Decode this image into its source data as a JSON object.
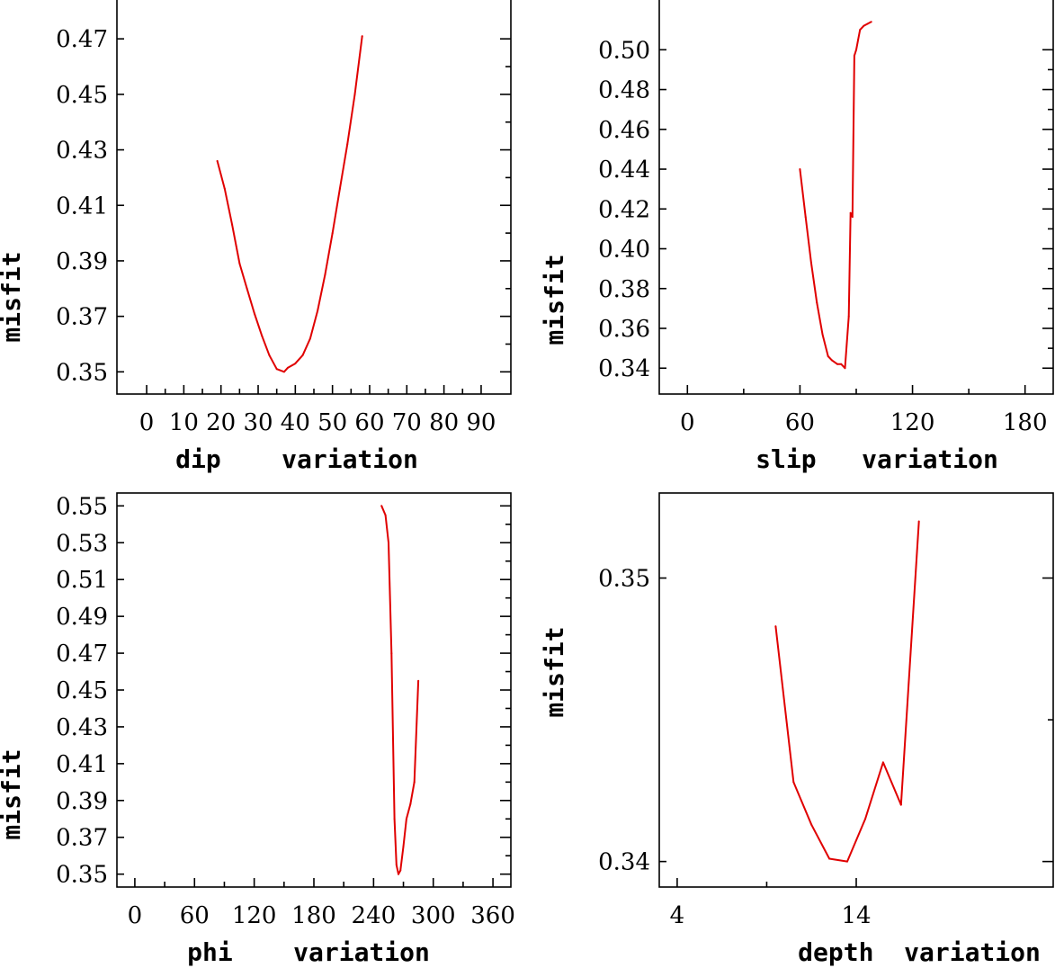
{
  "chart_data": [
    {
      "type": "line",
      "title": "",
      "xlabel": "dip    variation",
      "ylabel": "misfit",
      "xlim": [
        -8,
        98
      ],
      "ylim": [
        0.342,
        0.484
      ],
      "xticks": [
        "0",
        "10",
        "20",
        "30",
        "40",
        "50",
        "60",
        "70",
        "80",
        "90"
      ],
      "xtick_values": [
        0,
        10,
        20,
        30,
        40,
        50,
        60,
        70,
        80,
        90
      ],
      "yticks": [
        "0.35",
        "0.37",
        "0.39",
        "0.41",
        "0.43",
        "0.45",
        "0.47"
      ],
      "ytick_values": [
        0.35,
        0.37,
        0.39,
        0.41,
        0.43,
        0.45,
        0.47
      ],
      "series": [
        {
          "name": "misfit",
          "color": "#e00000",
          "x": [
            19,
            21,
            23,
            25,
            27,
            29,
            31,
            33,
            35,
            37,
            38,
            40,
            42,
            44,
            46,
            48,
            50,
            52,
            54,
            56,
            58
          ],
          "y": [
            0.426,
            0.416,
            0.403,
            0.389,
            0.38,
            0.371,
            0.363,
            0.356,
            0.351,
            0.35,
            0.3515,
            0.353,
            0.356,
            0.362,
            0.372,
            0.385,
            0.4,
            0.416,
            0.432,
            0.45,
            0.471
          ]
        }
      ]
    },
    {
      "type": "line",
      "title": "",
      "xlabel": "slip   variation",
      "ylabel": "misfit",
      "xlim": [
        -15,
        195
      ],
      "ylim": [
        0.327,
        0.525
      ],
      "xticks": [
        "0",
        "60",
        "120",
        "180"
      ],
      "xtick_values": [
        0,
        60,
        120,
        180
      ],
      "yticks": [
        "0.34",
        "0.36",
        "0.38",
        "0.40",
        "0.42",
        "0.44",
        "0.46",
        "0.48",
        "0.50"
      ],
      "ytick_values": [
        0.34,
        0.36,
        0.38,
        0.4,
        0.42,
        0.44,
        0.46,
        0.48,
        0.5
      ],
      "series": [
        {
          "name": "misfit",
          "color": "#e00000",
          "x": [
            60,
            63,
            66,
            69,
            72,
            75,
            77,
            80,
            82,
            84,
            86,
            87,
            88,
            89,
            90,
            91,
            92,
            94,
            96,
            98
          ],
          "y": [
            0.44,
            0.416,
            0.393,
            0.373,
            0.357,
            0.346,
            0.344,
            0.342,
            0.342,
            0.34,
            0.366,
            0.418,
            0.416,
            0.497,
            0.5,
            0.505,
            0.51,
            0.512,
            0.513,
            0.514
          ]
        }
      ]
    },
    {
      "type": "line",
      "title": "",
      "xlabel": "phi    variation",
      "ylabel": "misfit",
      "xlim": [
        -18,
        378
      ],
      "ylim": [
        0.343,
        0.557
      ],
      "xticks": [
        "0",
        "60",
        "120",
        "180",
        "240",
        "300",
        "360"
      ],
      "xtick_values": [
        0,
        60,
        120,
        180,
        240,
        300,
        360
      ],
      "yticks": [
        "0.35",
        "0.37",
        "0.39",
        "0.41",
        "0.43",
        "0.45",
        "0.47",
        "0.49",
        "0.51",
        "0.53",
        "0.55"
      ],
      "ytick_values": [
        0.35,
        0.37,
        0.39,
        0.41,
        0.43,
        0.45,
        0.47,
        0.49,
        0.51,
        0.53,
        0.55
      ],
      "series": [
        {
          "name": "misfit",
          "color": "#e00000",
          "x": [
            248,
            252,
            255,
            258,
            261,
            263,
            265,
            267,
            270,
            273,
            277,
            281,
            285
          ],
          "y": [
            0.55,
            0.545,
            0.53,
            0.47,
            0.38,
            0.355,
            0.35,
            0.352,
            0.365,
            0.38,
            0.388,
            0.4,
            0.455
          ]
        }
      ]
    },
    {
      "type": "line",
      "title": "",
      "xlabel": "depth  variation",
      "ylabel": "misfit",
      "xlim": [
        3,
        25
      ],
      "ylim": [
        0.3391,
        0.353
      ],
      "xticks": [
        "4",
        "14"
      ],
      "xtick_values": [
        4,
        14
      ],
      "yticks": [
        "0.34",
        "0.35"
      ],
      "ytick_values": [
        0.34,
        0.35
      ],
      "series": [
        {
          "name": "misfit",
          "color": "#e00000",
          "x": [
            9.5,
            10.5,
            11.5,
            12.5,
            13.5,
            14.5,
            15.5,
            16.5,
            17.5
          ],
          "y": [
            0.3483,
            0.3428,
            0.3413,
            0.3401,
            0.34,
            0.3415,
            0.3435,
            0.342,
            0.352
          ]
        }
      ]
    }
  ]
}
